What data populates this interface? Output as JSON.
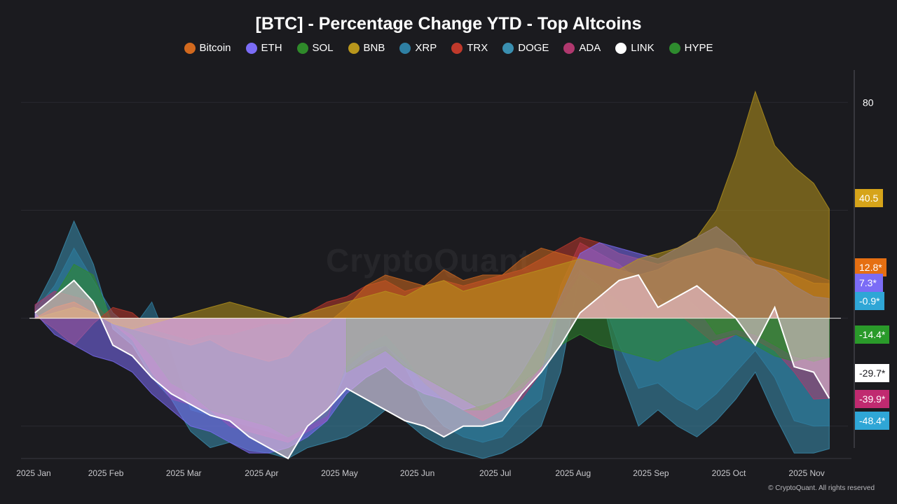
{
  "chart_data": {
    "type": "area",
    "title": "[BTC] - Percentage Change YTD - Top Altcoins",
    "xlabel": "",
    "ylabel": "",
    "ylim": [
      -52,
      92
    ],
    "y_ticks": [
      80
    ],
    "x_ticks": [
      "2025 Jan",
      "2025 Feb",
      "2025 Mar",
      "2025 Apr",
      "2025 May",
      "2025 Jun",
      "2025 Jul",
      "2025 Aug",
      "2025 Sep",
      "2025 Oct",
      "2025 Nov"
    ],
    "x_months": [
      0,
      1,
      2,
      3,
      4,
      5,
      6,
      7,
      8,
      9,
      10
    ],
    "x": [
      0.0,
      0.25,
      0.5,
      0.75,
      1.0,
      1.25,
      1.5,
      1.75,
      2.0,
      2.25,
      2.5,
      2.75,
      3.0,
      3.25,
      3.5,
      3.75,
      4.0,
      4.25,
      4.5,
      4.75,
      5.0,
      5.25,
      5.5,
      5.75,
      6.0,
      6.25,
      6.5,
      6.75,
      7.0,
      7.25,
      7.5,
      7.75,
      8.0,
      8.25,
      8.5,
      8.75,
      9.0,
      9.25,
      9.5,
      9.75,
      10.0,
      10.2
    ],
    "legend_position": "top-center",
    "series": [
      {
        "name": "DOGE",
        "color": "#3a8fb0",
        "values": [
          4,
          18,
          36,
          20,
          -4,
          -10,
          -22,
          -30,
          -42,
          -48,
          -46,
          -49,
          -50,
          -52,
          -48,
          -46,
          -44,
          -40,
          -34,
          -38,
          -44,
          -48,
          -50,
          -52,
          -50,
          -46,
          -40,
          -20,
          18,
          12,
          -20,
          -40,
          -34,
          -40,
          -44,
          -38,
          -30,
          -20,
          -36,
          -50,
          -50,
          -48.4
        ]
      },
      {
        "name": "XRP",
        "color": "#2e7fa3",
        "values": [
          3,
          12,
          26,
          14,
          2,
          -4,
          6,
          -12,
          -34,
          -36,
          -38,
          -40,
          -42,
          -44,
          -40,
          -36,
          -20,
          -14,
          -10,
          -18,
          -32,
          -40,
          -44,
          -46,
          -44,
          -36,
          -30,
          8,
          18,
          10,
          -10,
          -26,
          -24,
          -30,
          -34,
          -28,
          -20,
          -12,
          -22,
          -38,
          -40,
          -39.9
        ]
      },
      {
        "name": "ADA",
        "color": "#b0386e",
        "values": [
          5,
          10,
          8,
          6,
          -2,
          -8,
          -20,
          -30,
          -32,
          -34,
          -40,
          -42,
          -44,
          -46,
          -42,
          -38,
          -16,
          -10,
          -6,
          -14,
          -24,
          -30,
          -34,
          -38,
          -34,
          -30,
          -20,
          12,
          28,
          24,
          20,
          14,
          8,
          2,
          -4,
          -10,
          -6,
          -8,
          -12,
          -20,
          -30,
          -29.7
        ]
      },
      {
        "name": "SOL",
        "color": "#2f8a2a",
        "values": [
          2,
          8,
          20,
          16,
          -2,
          -6,
          -14,
          -24,
          -28,
          -34,
          -36,
          -38,
          -40,
          -44,
          -40,
          -36,
          -18,
          -12,
          -10,
          -16,
          -24,
          -30,
          -34,
          -34,
          -30,
          -26,
          -18,
          4,
          16,
          12,
          6,
          0,
          4,
          10,
          4,
          -6,
          -4,
          -6,
          -10,
          -14,
          -16,
          -14.4
        ]
      },
      {
        "name": "TRX",
        "color": "#c0392b",
        "values": [
          1,
          -4,
          -10,
          -2,
          4,
          2,
          -4,
          -6,
          -8,
          -6,
          -6,
          -4,
          -2,
          -2,
          2,
          6,
          8,
          12,
          14,
          10,
          12,
          14,
          12,
          14,
          16,
          18,
          22,
          26,
          30,
          28,
          24,
          22,
          20,
          22,
          24,
          26,
          24,
          22,
          20,
          18,
          16,
          14
        ]
      },
      {
        "name": "Bitcoin",
        "color": "#d2691e",
        "values": [
          0,
          4,
          6,
          2,
          -2,
          -4,
          -6,
          -8,
          -10,
          -8,
          -12,
          -14,
          -16,
          -14,
          -6,
          -2,
          4,
          12,
          16,
          14,
          12,
          18,
          14,
          16,
          16,
          22,
          26,
          24,
          22,
          20,
          18,
          16,
          18,
          22,
          24,
          26,
          24,
          20,
          18,
          16,
          13,
          12.8
        ]
      },
      {
        "name": "ETH",
        "color": "#7b6cf6",
        "values": [
          2,
          -6,
          -10,
          -14,
          -16,
          -20,
          -28,
          -34,
          -40,
          -42,
          -46,
          -50,
          -50,
          -48,
          -44,
          -38,
          -28,
          -22,
          -18,
          -24,
          -28,
          -30,
          -34,
          -32,
          -30,
          -20,
          -8,
          8,
          24,
          28,
          26,
          24,
          22,
          26,
          30,
          34,
          28,
          20,
          18,
          12,
          8,
          7.3
        ]
      },
      {
        "name": "BNB",
        "color": "#b8961c",
        "values": [
          0,
          2,
          4,
          2,
          -2,
          -4,
          -2,
          0,
          2,
          4,
          6,
          4,
          2,
          0,
          2,
          4,
          6,
          8,
          10,
          8,
          12,
          14,
          10,
          12,
          14,
          16,
          18,
          20,
          22,
          20,
          18,
          22,
          24,
          26,
          30,
          40,
          60,
          84,
          64,
          56,
          50,
          40.5
        ]
      },
      {
        "name": "HYPE",
        "color": "#2e8b2e",
        "values": [
          null,
          null,
          null,
          null,
          null,
          null,
          null,
          null,
          null,
          null,
          null,
          null,
          null,
          null,
          null,
          null,
          -20,
          -16,
          -12,
          -18,
          -22,
          -26,
          -30,
          -34,
          -30,
          -24,
          -18,
          -10,
          -6,
          -10,
          -12,
          -14,
          -16,
          -12,
          -10,
          -8,
          -6,
          -10,
          -14,
          -16,
          -14,
          -14.4
        ]
      },
      {
        "name": "LINK",
        "color": "#ffffff",
        "values": [
          2,
          8,
          14,
          6,
          -10,
          -14,
          -22,
          -28,
          -32,
          -36,
          -38,
          -44,
          -48,
          -52,
          -40,
          -34,
          -26,
          -30,
          -34,
          -38,
          -40,
          -44,
          -40,
          -40,
          -38,
          -28,
          -20,
          -10,
          2,
          8,
          14,
          16,
          4,
          8,
          12,
          6,
          0,
          -10,
          4,
          -18,
          -20,
          -29.7
        ]
      }
    ],
    "last_value_badges": [
      {
        "label": "40.5",
        "value": 40.5,
        "color": "#d6a41a"
      },
      {
        "label": "12.8*",
        "value": 12.8,
        "color": "#e56f12"
      },
      {
        "label": "7.3*",
        "value": 7.3,
        "color": "#7b6cf6"
      },
      {
        "label": "-0.9*",
        "value": -0.9,
        "color": "#2fa6d6"
      },
      {
        "label": "-14.4*",
        "value": -14.4,
        "color": "#2a9a2a"
      },
      {
        "label": "-29.7*",
        "value": -29.7,
        "color": "#ffffff",
        "text_color": "#1b1b1f"
      },
      {
        "label": "-39.9*",
        "value": -39.9,
        "color": "#c02a70"
      },
      {
        "label": "-48.4*",
        "value": -48.4,
        "color": "#2fa6d6"
      }
    ]
  },
  "legend": [
    {
      "label": "Bitcoin",
      "color": "#d2691e"
    },
    {
      "label": "ETH",
      "color": "#7b6cf6"
    },
    {
      "label": "SOL",
      "color": "#2f8a2a"
    },
    {
      "label": "BNB",
      "color": "#b8961c"
    },
    {
      "label": "XRP",
      "color": "#2e7fa3"
    },
    {
      "label": "TRX",
      "color": "#c0392b"
    },
    {
      "label": "DOGE",
      "color": "#3a8fb0"
    },
    {
      "label": "ADA",
      "color": "#b0386e"
    },
    {
      "label": "LINK",
      "color": "#ffffff"
    },
    {
      "label": "HYPE",
      "color": "#2e8b2e"
    }
  ],
  "watermark": "CryptoQuant",
  "copyright": "© CryptoQuant. All rights reserved"
}
